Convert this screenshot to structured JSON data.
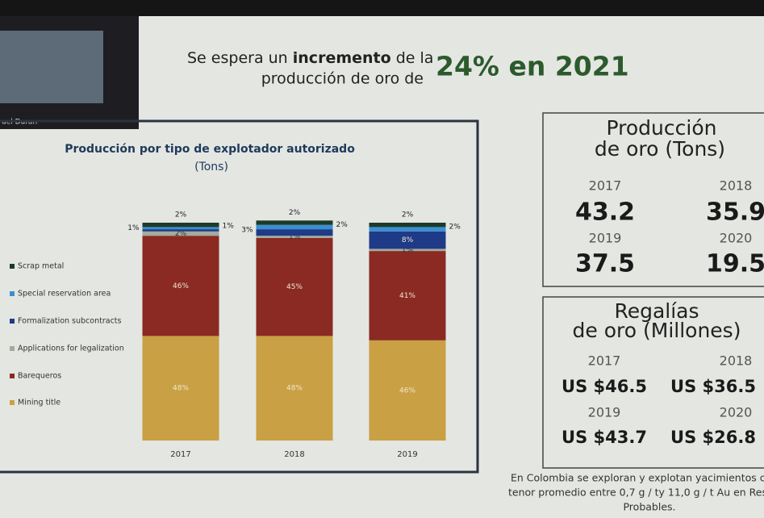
{
  "video_tile": {
    "name": "uel Duran"
  },
  "header": {
    "line1_pre": "Se espera un",
    "line1_bold": "incremento",
    "line1_post": "de la",
    "line2": "producción de oro de",
    "highlight": "24% en 2021"
  },
  "chart_data": {
    "type": "stacked-bar",
    "title": "Producción por tipo de explotador autorizado",
    "subtitle": "(Tons)",
    "categories": [
      "2017",
      "2018",
      "2019"
    ],
    "series": [
      {
        "name": "Mining title",
        "color": "#c9a043",
        "values": [
          48,
          48,
          46
        ],
        "value_labels": [
          "48%",
          "48%",
          "46%"
        ]
      },
      {
        "name": "Barequeros",
        "color": "#8a2a22",
        "values": [
          46,
          45,
          41
        ],
        "value_labels": [
          "46%",
          "45%",
          "41%"
        ]
      },
      {
        "name": "Applications for legalization",
        "color": "#a3ab9c",
        "values": [
          2,
          1,
          1
        ],
        "value_labels": [
          "2%",
          "1%",
          "1%"
        ]
      },
      {
        "name": "Formalization subcontracts",
        "color": "#1f3a86",
        "values": [
          1,
          3,
          8
        ],
        "value_labels": [
          "1%",
          "3%",
          "8%"
        ]
      },
      {
        "name": "Special reservation area",
        "color": "#3a8fd0",
        "values": [
          1,
          2,
          2
        ],
        "value_labels": [
          "1%",
          "2%",
          "2%"
        ]
      },
      {
        "name": "Scrap metal",
        "color": "#1c3a2a",
        "values": [
          2,
          2,
          2
        ],
        "value_labels": [
          "2%",
          "2%",
          "2%"
        ]
      }
    ]
  },
  "production": {
    "title1": "Producción",
    "title2": "de oro (Tons)",
    "items": [
      {
        "year": "2017",
        "value": 43.2
      },
      {
        "year": "2018",
        "value": 35.9
      },
      {
        "year": "2019",
        "value": 37.5
      },
      {
        "year": "2020",
        "value": 19.5
      }
    ]
  },
  "royalties": {
    "title1": "Regalías",
    "title2": "de oro (Millones)",
    "items": [
      {
        "year": "2017",
        "value": "US $46.5"
      },
      {
        "year": "2018",
        "value": "US $36.5"
      },
      {
        "year": "2019",
        "value": "US $43.7"
      },
      {
        "year": "2020",
        "value": "US $26.8"
      }
    ]
  },
  "footnote": [
    "En Colombia se exploran y explotan yacimientos c",
    "tenor promedio entre 0,7 g / ty 11,0 g / t Au en Res",
    "Probables."
  ]
}
